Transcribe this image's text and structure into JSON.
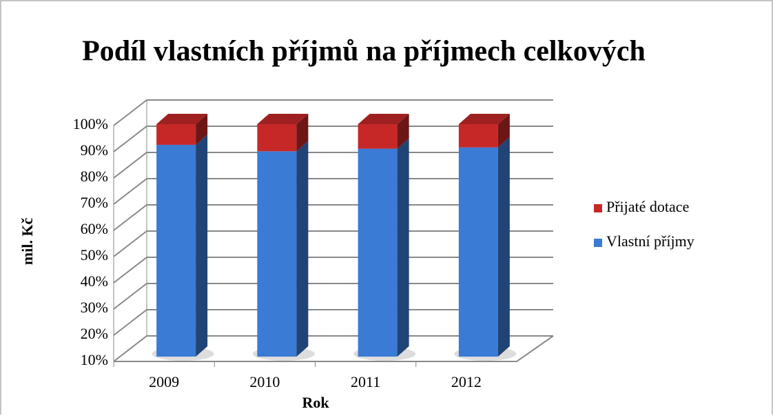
{
  "chart_data": {
    "type": "bar3d_stacked",
    "title": "Podíl vlastních příjmů na příjmech celkových",
    "y_label": "mil. Kč",
    "x_label": "Rok",
    "categories": [
      "2009",
      "2010",
      "2011",
      "2012"
    ],
    "series": [
      {
        "name": "Vlastní příjmy",
        "color": "#3a7bd5",
        "values": [
          92,
          89.5,
          90.5,
          91
        ]
      },
      {
        "name": "Přijaté dotace",
        "color": "#c62828",
        "values": [
          8,
          10.5,
          9.5,
          9
        ]
      }
    ],
    "ylim": [
      10,
      100
    ],
    "yticks": [
      {
        "value": 10,
        "label": "10%"
      },
      {
        "value": 20,
        "label": "20%"
      },
      {
        "value": 30,
        "label": "30%"
      },
      {
        "value": 40,
        "label": "40%"
      },
      {
        "value": 50,
        "label": "50%"
      },
      {
        "value": 60,
        "label": "60%"
      },
      {
        "value": 70,
        "label": "70%"
      },
      {
        "value": 80,
        "label": "80%"
      },
      {
        "value": 90,
        "label": "90%"
      },
      {
        "value": 100,
        "label": "100%"
      }
    ],
    "grid": true,
    "legend": "right"
  }
}
